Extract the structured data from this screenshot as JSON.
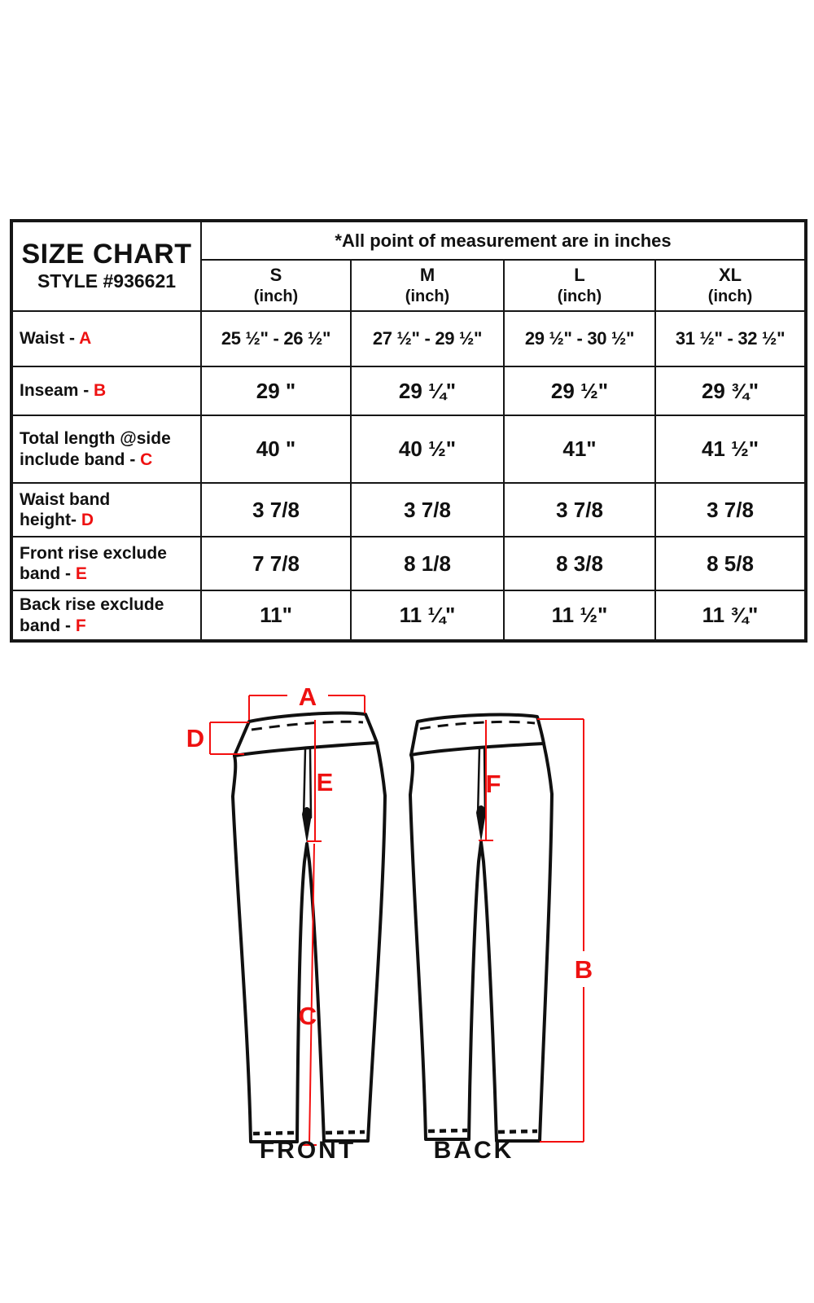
{
  "colors": {
    "accent_red": "#ee1111",
    "diagram_line_red": "#f30e0e",
    "table_border": "#161616",
    "text": "#111111",
    "background": "#ffffff"
  },
  "table": {
    "title": "SIZE CHART",
    "style_number": "STYLE #936621",
    "note": "*All point of measurement are in inches",
    "sizes": [
      "S",
      "M",
      "L",
      "XL"
    ],
    "size_unit": "(inch)",
    "rows": [
      {
        "label_lines": [
          "Waist - "
        ],
        "letter": "A",
        "values": [
          "25 ½\" - 26 ½\"",
          "27 ½\" - 29 ½\"",
          "29 ½\" - 30 ½\"",
          "31 ½\" - 32 ½\""
        ]
      },
      {
        "label_lines": [
          "Inseam - "
        ],
        "letter": "B",
        "values": [
          "29 \"",
          "29 ¼\"",
          "29 ½\"",
          "29 ¾\""
        ]
      },
      {
        "label_lines": [
          "Total length @side",
          "include band - "
        ],
        "letter": "C",
        "values": [
          "40 \"",
          "40 ½\"",
          "41\"",
          "41 ½\""
        ]
      },
      {
        "label_lines": [
          "Waist band",
          "height- "
        ],
        "letter": "D",
        "values": [
          "3 7/8",
          "3 7/8",
          "3 7/8",
          "3 7/8"
        ]
      },
      {
        "label_lines": [
          "Front rise exclude",
          " band - "
        ],
        "letter": "E",
        "values": [
          "7 7/8",
          "8 1/8",
          "8 3/8",
          "8 5/8"
        ]
      },
      {
        "label_lines": [
          "Back rise exclude",
          "band - "
        ],
        "letter": "F",
        "values": [
          "11\"",
          "11 ¼\"",
          "11 ½\"",
          "11 ¾\""
        ]
      }
    ]
  },
  "diagram": {
    "letters": {
      "A": "A",
      "B": "B",
      "C": "C",
      "D": "D",
      "E": "E",
      "F": "F"
    },
    "front_label": "FRONT",
    "back_label": "BACK"
  }
}
